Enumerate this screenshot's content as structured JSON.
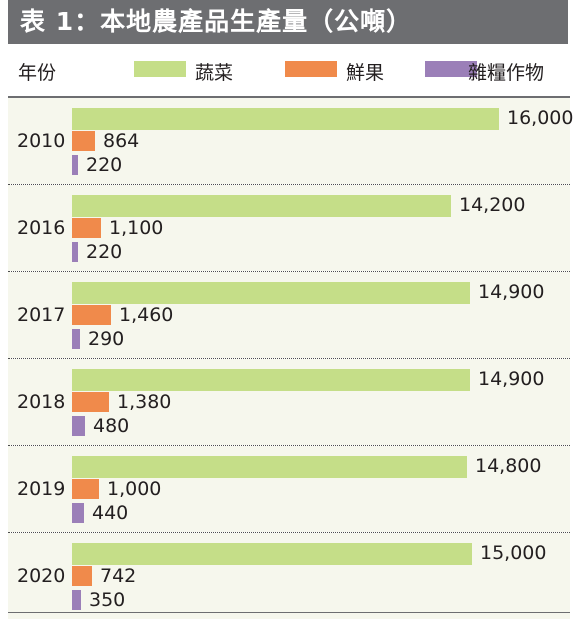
{
  "title": "表 1：本地農產品生產量（公噸）",
  "legend": {
    "year_header": "年份",
    "items": [
      {
        "label": "蔬菜",
        "color": "#c5de88"
      },
      {
        "label": "鮮果",
        "color": "#f08a4b"
      },
      {
        "label": "雜糧作物",
        "color": "#9b7fb8"
      }
    ]
  },
  "chart_data": {
    "type": "bar",
    "orientation": "horizontal",
    "title": "表 1：本地農產品生產量（公噸）",
    "categories": [
      "2010",
      "2016",
      "2017",
      "2018",
      "2019",
      "2020"
    ],
    "series": [
      {
        "name": "蔬菜",
        "color": "#c5de88",
        "values": [
          16000,
          14200,
          14900,
          14900,
          14800,
          15000
        ],
        "labels": [
          "16,000",
          "14,200",
          "14,900",
          "14,900",
          "14,800",
          "15,000"
        ]
      },
      {
        "name": "鮮果",
        "color": "#f08a4b",
        "values": [
          864,
          1100,
          1460,
          1380,
          1000,
          742
        ],
        "labels": [
          "864",
          "1,100",
          "1,460",
          "1,380",
          "1,000",
          "742"
        ]
      },
      {
        "name": "雜糧作物",
        "color": "#9b7fb8",
        "values": [
          220,
          220,
          290,
          480,
          440,
          350
        ],
        "labels": [
          "220",
          "220",
          "290",
          "480",
          "440",
          "350"
        ]
      }
    ],
    "xlim": [
      0,
      16000
    ],
    "grid": false,
    "legend_position": "top"
  }
}
